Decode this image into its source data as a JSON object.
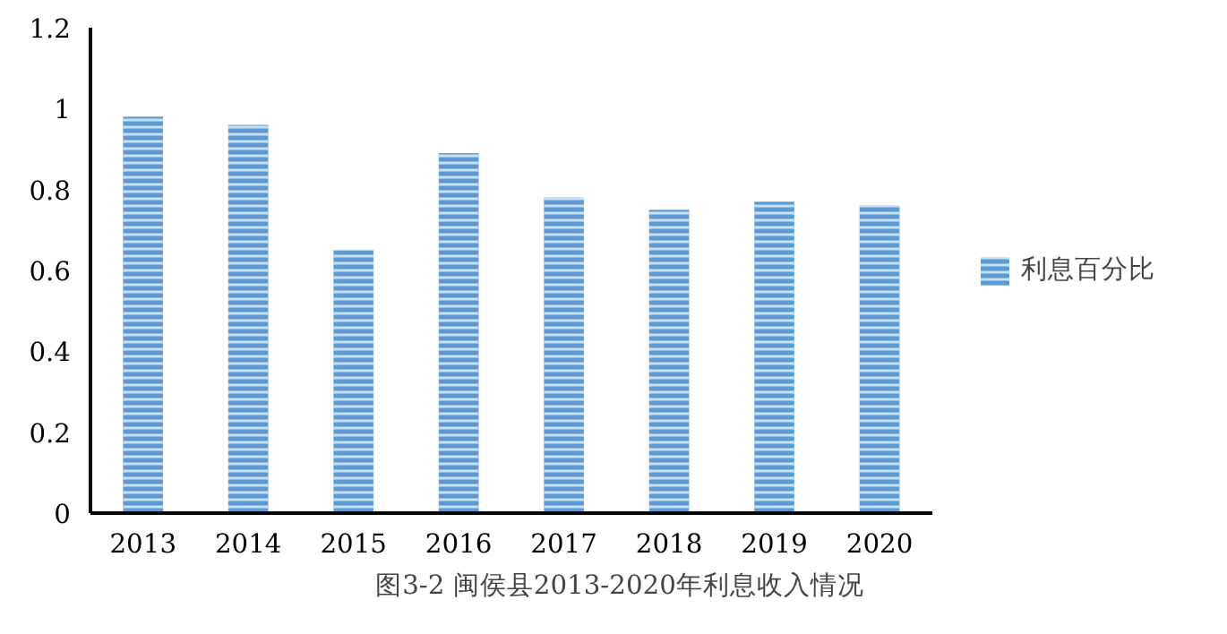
{
  "chart_data": {
    "type": "bar",
    "title": "图3-2    闽侯县2013-2020年利息收入情况",
    "categories": [
      "2013",
      "2014",
      "2015",
      "2016",
      "2017",
      "2018",
      "2019",
      "2020"
    ],
    "series": [
      {
        "name": "利息百分比",
        "color": "#5b9bd5",
        "values": [
          0.98,
          0.96,
          0.65,
          0.89,
          0.78,
          0.75,
          0.77,
          0.76
        ]
      }
    ],
    "ylim": [
      0,
      1.2
    ],
    "yticks": [
      0,
      0.2,
      0.4,
      0.6,
      0.8,
      {
        "value": 1,
        "label": "1"
      },
      1.2
    ],
    "grid": false,
    "legend": "right"
  }
}
